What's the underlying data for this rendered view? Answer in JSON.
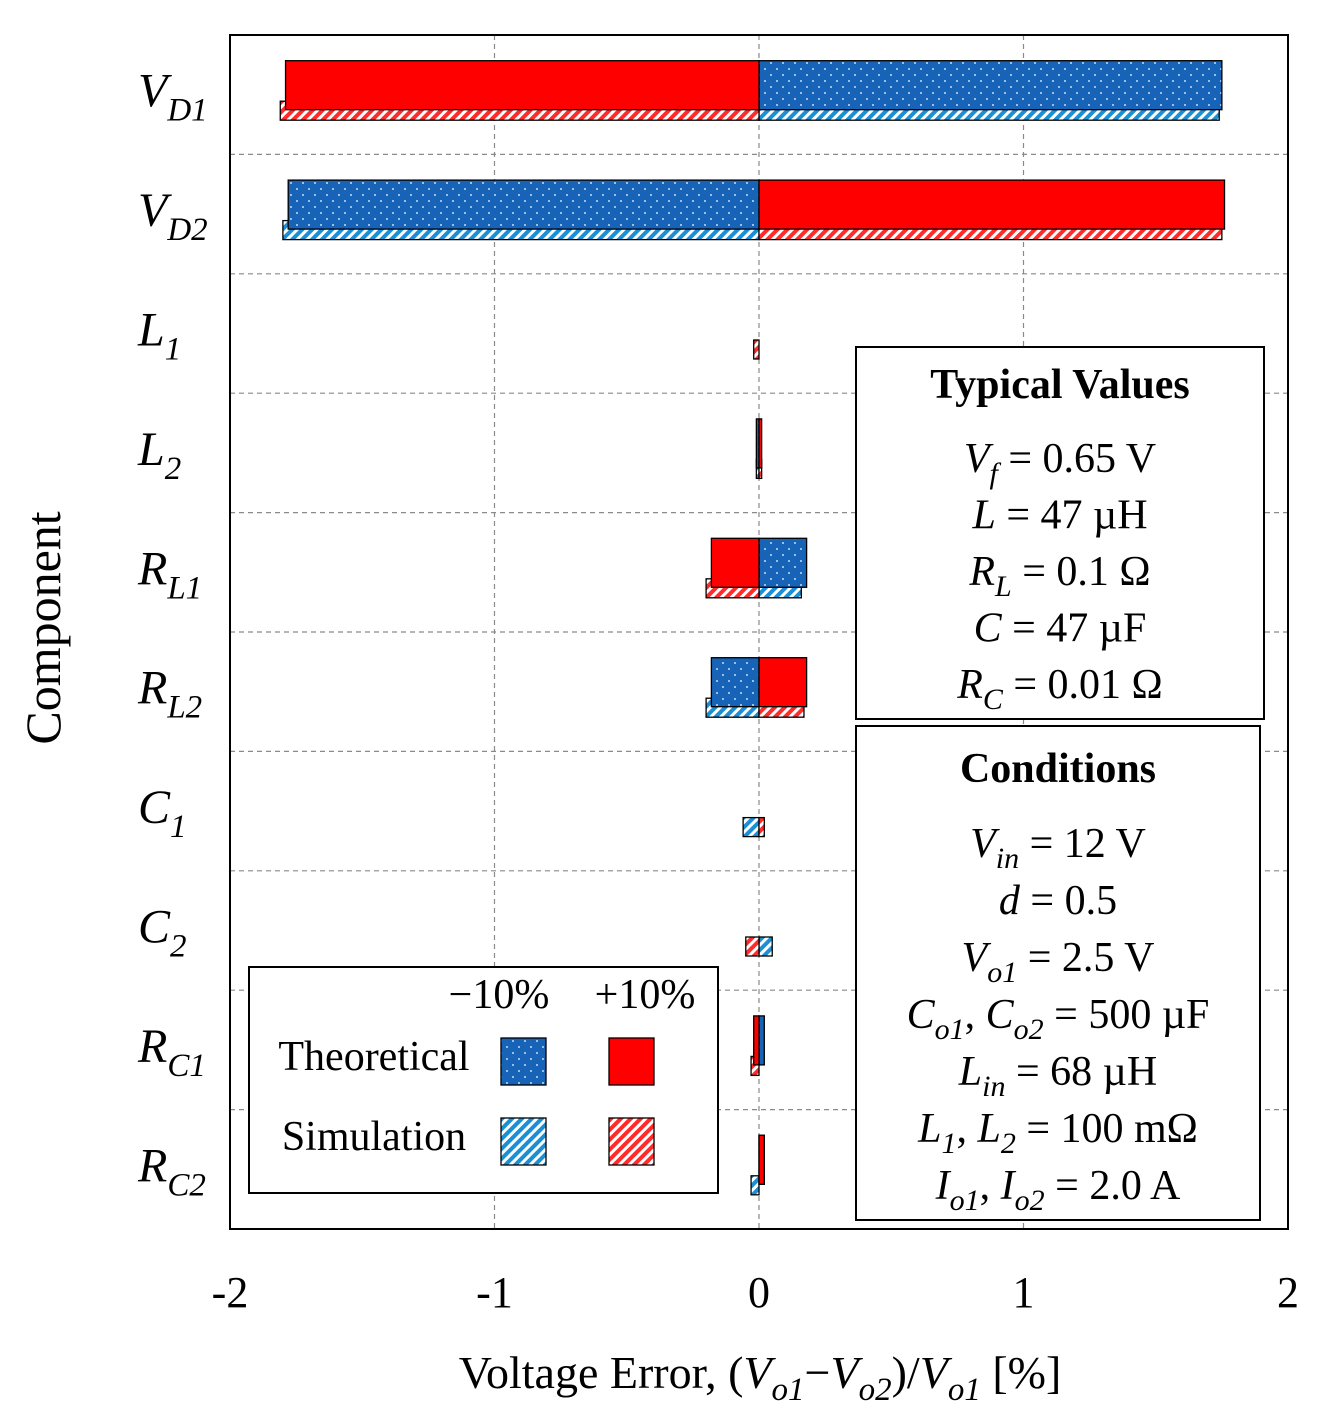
{
  "chart_data": {
    "type": "bar",
    "orientation": "horizontal",
    "title": "",
    "xlabel": {
      "parts": [
        {
          "text": "Voltage  Error, (",
          "italic": false
        },
        {
          "text": "V",
          "italic": true
        },
        {
          "text": "o1",
          "italic": true,
          "sub": true
        },
        {
          "text": "−",
          "italic": false
        },
        {
          "text": "V",
          "italic": true
        },
        {
          "text": "o2",
          "italic": true,
          "sub": true
        },
        {
          "text": ")/",
          "italic": false
        },
        {
          "text": "V",
          "italic": true
        },
        {
          "text": "o1",
          "italic": true,
          "sub": true
        },
        {
          "text": " [%]",
          "italic": false
        }
      ]
    },
    "ylabel": "Component",
    "xlim": [
      -2,
      2
    ],
    "xticks": [
      -2,
      -1,
      0,
      1,
      2
    ],
    "xtick_labels": [
      "-2",
      "-1",
      "0",
      "1",
      "2"
    ],
    "grid": true,
    "categories": [
      {
        "main": "V",
        "sub": "D1"
      },
      {
        "main": "V",
        "sub": "D2"
      },
      {
        "main": "L",
        "sub": "1"
      },
      {
        "main": "L",
        "sub": "2"
      },
      {
        "main": "R",
        "sub": "L1"
      },
      {
        "main": "R",
        "sub": "L2"
      },
      {
        "main": "C",
        "sub": "1"
      },
      {
        "main": "C",
        "sub": "2"
      },
      {
        "main": "R",
        "sub": "C1"
      },
      {
        "main": "R",
        "sub": "C2"
      }
    ],
    "series": [
      {
        "name": "Theoretical −10%",
        "method": "Theoretical",
        "variation": "−10%",
        "color": "#1763b8",
        "pattern": "dots",
        "values": [
          1.75,
          -1.78,
          0.0,
          -0.01,
          0.18,
          -0.18,
          0.0,
          0.0,
          0.02,
          0.02
        ]
      },
      {
        "name": "Theoretical +10%",
        "method": "Theoretical",
        "variation": "+10%",
        "color": "#ff0000",
        "pattern": "solid",
        "values": [
          -1.79,
          1.76,
          0.0,
          0.01,
          -0.18,
          0.18,
          0.0,
          0.0,
          -0.02,
          0.02
        ]
      },
      {
        "name": "Simulation −10%",
        "method": "Simulation",
        "variation": "−10%",
        "color": "#1a8fd6",
        "pattern": "hatch",
        "values": [
          1.74,
          -1.8,
          0.0,
          -0.01,
          0.16,
          -0.2,
          -0.06,
          0.05,
          0.0,
          -0.03
        ]
      },
      {
        "name": "Simulation +10%",
        "method": "Simulation",
        "variation": "+10%",
        "color": "#ff3333",
        "pattern": "hatch",
        "values": [
          -1.81,
          1.75,
          -0.02,
          0.01,
          -0.2,
          0.17,
          0.02,
          -0.05,
          -0.03,
          0.0
        ]
      }
    ],
    "legend": {
      "placement": "bottom-left",
      "columns": [
        "−10%",
        "+10%"
      ],
      "rows": [
        "Theoretical",
        "Simulation"
      ]
    },
    "annotations": [
      {
        "title": "Typical Values",
        "placement": "right-middle",
        "lines": [
          {
            "parts": [
              {
                "t": "V",
                "i": true
              },
              {
                "t": "f",
                "i": true,
                "sub": true
              },
              {
                "t": " = 0.65 V"
              }
            ]
          },
          {
            "parts": [
              {
                "t": "L",
                "i": true
              },
              {
                "t": " = 47 µH"
              }
            ]
          },
          {
            "parts": [
              {
                "t": "R",
                "i": true
              },
              {
                "t": "L",
                "i": true,
                "sub": true
              },
              {
                "t": " = 0.1 Ω"
              }
            ]
          },
          {
            "parts": [
              {
                "t": "C",
                "i": true
              },
              {
                "t": " = 47 µF"
              }
            ]
          },
          {
            "parts": [
              {
                "t": "R",
                "i": true
              },
              {
                "t": "C",
                "i": true,
                "sub": true
              },
              {
                "t": " = 0.01 Ω"
              }
            ]
          }
        ]
      },
      {
        "title": "Conditions",
        "placement": "bottom-right",
        "lines": [
          {
            "parts": [
              {
                "t": "V",
                "i": true
              },
              {
                "t": "in",
                "i": true,
                "sub": true
              },
              {
                "t": " = 12 V"
              }
            ]
          },
          {
            "parts": [
              {
                "t": "d",
                "i": true
              },
              {
                "t": " = 0.5"
              }
            ]
          },
          {
            "parts": [
              {
                "t": "V",
                "i": true
              },
              {
                "t": "o1",
                "i": true,
                "sub": true
              },
              {
                "t": " = 2.5 V"
              }
            ]
          },
          {
            "parts": [
              {
                "t": "C",
                "i": true
              },
              {
                "t": "o1",
                "i": true,
                "sub": true
              },
              {
                "t": ", "
              },
              {
                "t": "C",
                "i": true
              },
              {
                "t": "o2",
                "i": true,
                "sub": true
              },
              {
                "t": " = 500 µF"
              }
            ]
          },
          {
            "parts": [
              {
                "t": "L",
                "i": true
              },
              {
                "t": "in",
                "i": true,
                "sub": true
              },
              {
                "t": " = 68 µH"
              }
            ]
          },
          {
            "parts": [
              {
                "t": "L",
                "i": true
              },
              {
                "t": "1",
                "i": true,
                "sub": true
              },
              {
                "t": ", "
              },
              {
                "t": "L",
                "i": true
              },
              {
                "t": "2",
                "i": true,
                "sub": true
              },
              {
                "t": " = 100 mΩ"
              }
            ]
          },
          {
            "parts": [
              {
                "t": "I",
                "i": true
              },
              {
                "t": "o1",
                "i": true,
                "sub": true
              },
              {
                "t": ", "
              },
              {
                "t": "I",
                "i": true
              },
              {
                "t": "o2",
                "i": true,
                "sub": true
              },
              {
                "t": " = 2.0 A"
              }
            ]
          }
        ]
      }
    ]
  }
}
